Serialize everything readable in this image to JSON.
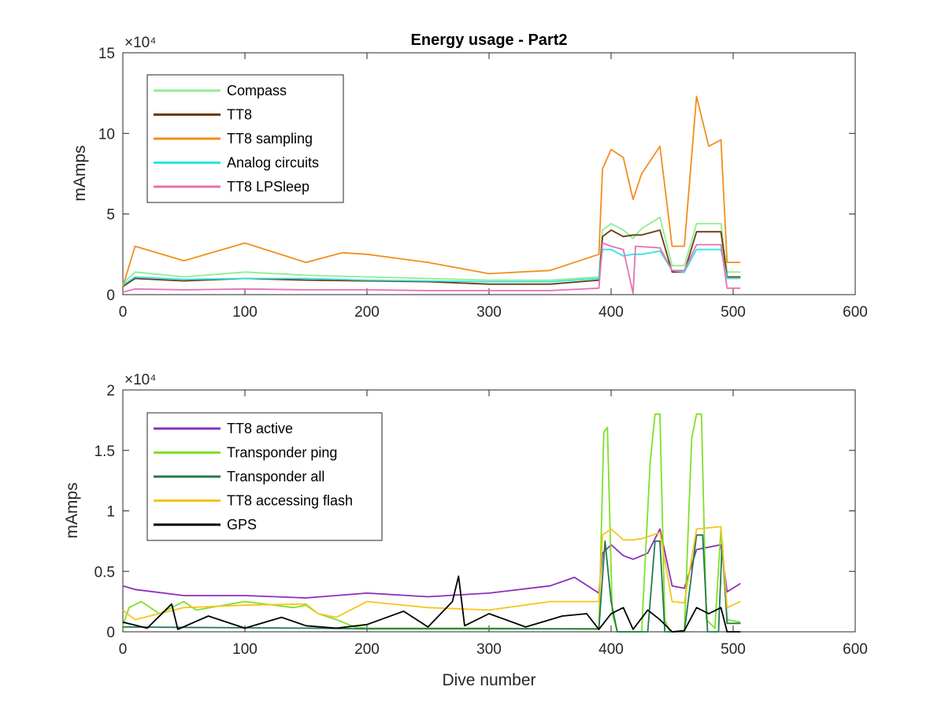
{
  "chart_data": [
    {
      "type": "line",
      "title": "Energy usage - Part2",
      "xlabel": "",
      "ylabel": "mAmps",
      "xlim": [
        0,
        600
      ],
      "ylim": [
        0,
        150000
      ],
      "exponent_label": "×10⁴",
      "x_ticks": [
        "0",
        "100",
        "200",
        "300",
        "400",
        "500",
        "600"
      ],
      "y_ticks": [
        "0",
        "5",
        "10",
        "15"
      ],
      "legend_position": "top-left",
      "grid": false,
      "series": [
        {
          "name": "Compass",
          "color": "#90ee90",
          "points": [
            [
              0,
              7000
            ],
            [
              10,
              14000
            ],
            [
              50,
              11000
            ],
            [
              100,
              14000
            ],
            [
              150,
              12000
            ],
            [
              200,
              11000
            ],
            [
              250,
              10000
            ],
            [
              300,
              9000
            ],
            [
              350,
              9000
            ],
            [
              390,
              11000
            ],
            [
              393,
              40000
            ],
            [
              400,
              44000
            ],
            [
              410,
              40000
            ],
            [
              418,
              35000
            ],
            [
              425,
              41000
            ],
            [
              440,
              48000
            ],
            [
              450,
              18000
            ],
            [
              460,
              18000
            ],
            [
              470,
              44000
            ],
            [
              490,
              44000
            ],
            [
              495,
              14000
            ],
            [
              506,
              14000
            ]
          ]
        },
        {
          "name": "TT8",
          "color": "#6b3a12",
          "points": [
            [
              0,
              5000
            ],
            [
              10,
              10000
            ],
            [
              50,
              8500
            ],
            [
              100,
              10000
            ],
            [
              150,
              9000
            ],
            [
              200,
              8500
            ],
            [
              250,
              8000
            ],
            [
              300,
              6500
            ],
            [
              350,
              6500
            ],
            [
              390,
              9000
            ],
            [
              393,
              36000
            ],
            [
              400,
              40000
            ],
            [
              410,
              36000
            ],
            [
              418,
              37000
            ],
            [
              425,
              37000
            ],
            [
              440,
              40000
            ],
            [
              450,
              14000
            ],
            [
              460,
              14000
            ],
            [
              470,
              39000
            ],
            [
              490,
              39000
            ],
            [
              495,
              11000
            ],
            [
              506,
              11000
            ]
          ]
        },
        {
          "name": "TT8 sampling",
          "color": "#f28e1c",
          "points": [
            [
              0,
              5000
            ],
            [
              10,
              30000
            ],
            [
              50,
              21000
            ],
            [
              100,
              32000
            ],
            [
              150,
              20000
            ],
            [
              180,
              26000
            ],
            [
              200,
              25000
            ],
            [
              250,
              20000
            ],
            [
              300,
              13000
            ],
            [
              350,
              15000
            ],
            [
              390,
              25000
            ],
            [
              393,
              78000
            ],
            [
              400,
              90000
            ],
            [
              410,
              85000
            ],
            [
              418,
              59000
            ],
            [
              425,
              75000
            ],
            [
              440,
              92000
            ],
            [
              450,
              30000
            ],
            [
              460,
              30000
            ],
            [
              470,
              123000
            ],
            [
              480,
              92000
            ],
            [
              490,
              96000
            ],
            [
              495,
              20000
            ],
            [
              506,
              20000
            ]
          ]
        },
        {
          "name": "Analog circuits",
          "color": "#2de5e5",
          "points": [
            [
              0,
              6000
            ],
            [
              10,
              11000
            ],
            [
              50,
              9500
            ],
            [
              100,
              10000
            ],
            [
              150,
              10000
            ],
            [
              200,
              9000
            ],
            [
              250,
              8500
            ],
            [
              300,
              8000
            ],
            [
              350,
              8000
            ],
            [
              390,
              10000
            ],
            [
              393,
              28000
            ],
            [
              400,
              28000
            ],
            [
              410,
              24000
            ],
            [
              418,
              25000
            ],
            [
              425,
              25000
            ],
            [
              440,
              27000
            ],
            [
              450,
              15000
            ],
            [
              460,
              14000
            ],
            [
              470,
              28000
            ],
            [
              490,
              28000
            ],
            [
              495,
              10000
            ],
            [
              506,
              10000
            ]
          ]
        },
        {
          "name": "TT8 LPSleep",
          "color": "#e770b3",
          "points": [
            [
              0,
              1500
            ],
            [
              10,
              3500
            ],
            [
              50,
              3000
            ],
            [
              100,
              3500
            ],
            [
              150,
              3000
            ],
            [
              200,
              3000
            ],
            [
              250,
              2500
            ],
            [
              300,
              2500
            ],
            [
              350,
              2500
            ],
            [
              390,
              4000
            ],
            [
              393,
              32000
            ],
            [
              400,
              30000
            ],
            [
              410,
              28000
            ],
            [
              418,
              800
            ],
            [
              420,
              30000
            ],
            [
              440,
              29000
            ],
            [
              450,
              15000
            ],
            [
              460,
              15000
            ],
            [
              470,
              31000
            ],
            [
              490,
              31000
            ],
            [
              495,
              4000
            ],
            [
              506,
              4000
            ]
          ]
        }
      ]
    },
    {
      "type": "line",
      "title": "",
      "xlabel": "Dive number",
      "ylabel": "mAmps",
      "xlim": [
        0,
        600
      ],
      "ylim": [
        0,
        20000
      ],
      "exponent_label": "×10⁴",
      "x_ticks": [
        "0",
        "100",
        "200",
        "300",
        "400",
        "500",
        "600"
      ],
      "y_ticks": [
        "0",
        "0.5",
        "1",
        "1.5",
        "2"
      ],
      "legend_position": "top-left",
      "grid": false,
      "series": [
        {
          "name": "TT8 active",
          "color": "#8b2fbd",
          "points": [
            [
              0,
              3800
            ],
            [
              10,
              3500
            ],
            [
              50,
              3000
            ],
            [
              100,
              3000
            ],
            [
              150,
              2800
            ],
            [
              200,
              3200
            ],
            [
              250,
              2900
            ],
            [
              300,
              3200
            ],
            [
              350,
              3800
            ],
            [
              370,
              4500
            ],
            [
              390,
              3200
            ],
            [
              393,
              6500
            ],
            [
              400,
              7200
            ],
            [
              410,
              6300
            ],
            [
              418,
              6000
            ],
            [
              430,
              6500
            ],
            [
              440,
              8500
            ],
            [
              450,
              3800
            ],
            [
              460,
              3600
            ],
            [
              470,
              6800
            ],
            [
              490,
              7200
            ],
            [
              495,
              3300
            ],
            [
              506,
              4000
            ]
          ]
        },
        {
          "name": "Transponder ping",
          "color": "#7ee02a",
          "points": [
            [
              0,
              500
            ],
            [
              5,
              2000
            ],
            [
              15,
              2500
            ],
            [
              30,
              1500
            ],
            [
              50,
              2500
            ],
            [
              60,
              1800
            ],
            [
              100,
              2500
            ],
            [
              140,
              2000
            ],
            [
              150,
              2200
            ],
            [
              160,
              1500
            ],
            [
              175,
              1000
            ],
            [
              190,
              400
            ],
            [
              200,
              300
            ],
            [
              300,
              300
            ],
            [
              390,
              200
            ],
            [
              394,
              16500
            ],
            [
              397,
              16900
            ],
            [
              401,
              1500
            ],
            [
              405,
              0
            ],
            [
              425,
              0
            ],
            [
              432,
              14000
            ],
            [
              436,
              18000
            ],
            [
              440,
              18000
            ],
            [
              444,
              1000
            ],
            [
              448,
              0
            ],
            [
              460,
              0
            ],
            [
              466,
              16000
            ],
            [
              470,
              18000
            ],
            [
              474,
              18000
            ],
            [
              478,
              1000
            ],
            [
              485,
              300
            ],
            [
              490,
              8500
            ],
            [
              495,
              1000
            ],
            [
              506,
              800
            ]
          ]
        },
        {
          "name": "Transponder all",
          "color": "#237a4d",
          "points": [
            [
              0,
              400
            ],
            [
              150,
              300
            ],
            [
              200,
              250
            ],
            [
              300,
              250
            ],
            [
              390,
              250
            ],
            [
              395,
              7500
            ],
            [
              400,
              2500
            ],
            [
              405,
              0
            ],
            [
              430,
              0
            ],
            [
              436,
              7500
            ],
            [
              440,
              7500
            ],
            [
              444,
              0
            ],
            [
              460,
              0
            ],
            [
              470,
              8000
            ],
            [
              475,
              8000
            ],
            [
              479,
              0
            ],
            [
              488,
              0
            ],
            [
              491,
              7500
            ],
            [
              495,
              700
            ],
            [
              506,
              700
            ]
          ]
        },
        {
          "name": "TT8 accessing flash",
          "color": "#f7c51e",
          "points": [
            [
              0,
              1800
            ],
            [
              10,
              1000
            ],
            [
              50,
              2000
            ],
            [
              100,
              2200
            ],
            [
              150,
              2300
            ],
            [
              160,
              1500
            ],
            [
              175,
              1200
            ],
            [
              200,
              2500
            ],
            [
              250,
              2000
            ],
            [
              300,
              1800
            ],
            [
              350,
              2500
            ],
            [
              390,
              2500
            ],
            [
              393,
              8000
            ],
            [
              400,
              8500
            ],
            [
              410,
              7600
            ],
            [
              418,
              7600
            ],
            [
              425,
              7700
            ],
            [
              440,
              8200
            ],
            [
              450,
              2500
            ],
            [
              460,
              2400
            ],
            [
              470,
              8500
            ],
            [
              490,
              8700
            ],
            [
              495,
              2000
            ],
            [
              506,
              2500
            ]
          ]
        },
        {
          "name": "GPS",
          "color": "#000000",
          "points": [
            [
              0,
              800
            ],
            [
              20,
              300
            ],
            [
              40,
              2300
            ],
            [
              45,
              200
            ],
            [
              70,
              1300
            ],
            [
              100,
              300
            ],
            [
              130,
              1200
            ],
            [
              150,
              500
            ],
            [
              175,
              300
            ],
            [
              200,
              600
            ],
            [
              230,
              1700
            ],
            [
              250,
              400
            ],
            [
              270,
              2500
            ],
            [
              275,
              4600
            ],
            [
              280,
              500
            ],
            [
              300,
              1500
            ],
            [
              330,
              400
            ],
            [
              360,
              1300
            ],
            [
              380,
              1500
            ],
            [
              390,
              200
            ],
            [
              400,
              1500
            ],
            [
              410,
              2000
            ],
            [
              418,
              200
            ],
            [
              430,
              1800
            ],
            [
              440,
              1000
            ],
            [
              450,
              0
            ],
            [
              460,
              100
            ],
            [
              470,
              2000
            ],
            [
              480,
              1500
            ],
            [
              490,
              2000
            ],
            [
              495,
              0
            ],
            [
              506,
              0
            ]
          ]
        }
      ]
    }
  ]
}
